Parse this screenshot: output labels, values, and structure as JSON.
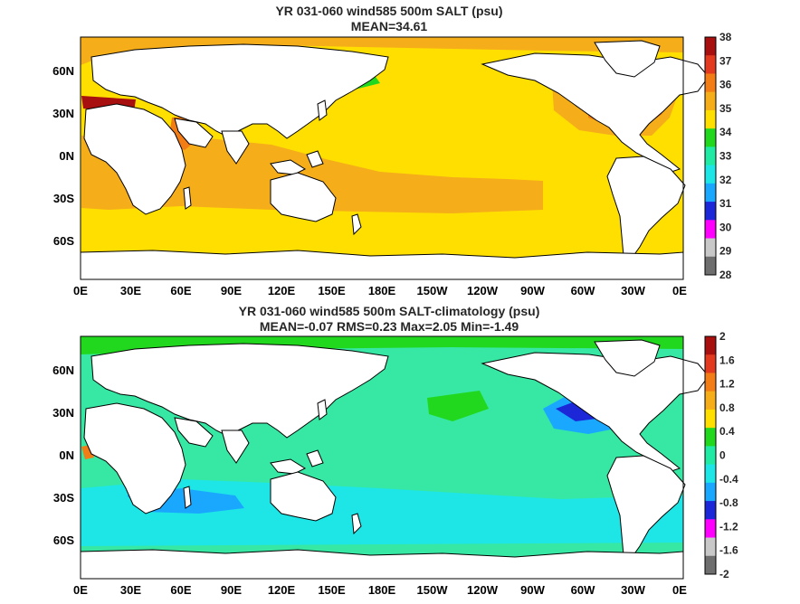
{
  "panels": [
    {
      "title": "YR 031-060 wind585 500m SALT (psu)",
      "stats": "MEAN=34.61",
      "background": "#ffdf00",
      "colorbar": {
        "labels": [
          "38",
          "37",
          "36",
          "35",
          "34",
          "33",
          "32",
          "31",
          "30",
          "29",
          "28"
        ],
        "colors": [
          "#a81010",
          "#e13a1e",
          "#f27c16",
          "#f6ad1a",
          "#ffdf00",
          "#22d81e",
          "#20eaa4",
          "#1ee6e6",
          "#1aa8ff",
          "#1c28d8",
          "#ff00ff",
          "#c8c8c8",
          "#6e6e6e"
        ]
      }
    },
    {
      "title": "YR 031-060 wind585 500m SALT-climatology (psu)",
      "stats": "MEAN=-0.07   RMS=0.23   Max=2.05   Min=-1.49",
      "background": "#36e8a4",
      "colorbar": {
        "labels": [
          "2",
          "1.6",
          "1.2",
          "0.8",
          "0.4",
          "0",
          "-0.4",
          "-0.8",
          "-1.2",
          "-1.6",
          "-2"
        ],
        "colors": [
          "#a81010",
          "#e13a1e",
          "#f27c16",
          "#f6ad1a",
          "#ffdf00",
          "#22d81e",
          "#20eaa4",
          "#1ee6e6",
          "#1aa8ff",
          "#1c28d8",
          "#ff00ff",
          "#c8c8c8",
          "#6e6e6e"
        ]
      }
    }
  ],
  "axes": {
    "x_ticks": [
      "0E",
      "30E",
      "60E",
      "90E",
      "120E",
      "150E",
      "180E",
      "150W",
      "120W",
      "90W",
      "60W",
      "30W",
      "0E"
    ],
    "y_ticks": [
      "60N",
      "30N",
      "0N",
      "30S",
      "60S"
    ]
  }
}
